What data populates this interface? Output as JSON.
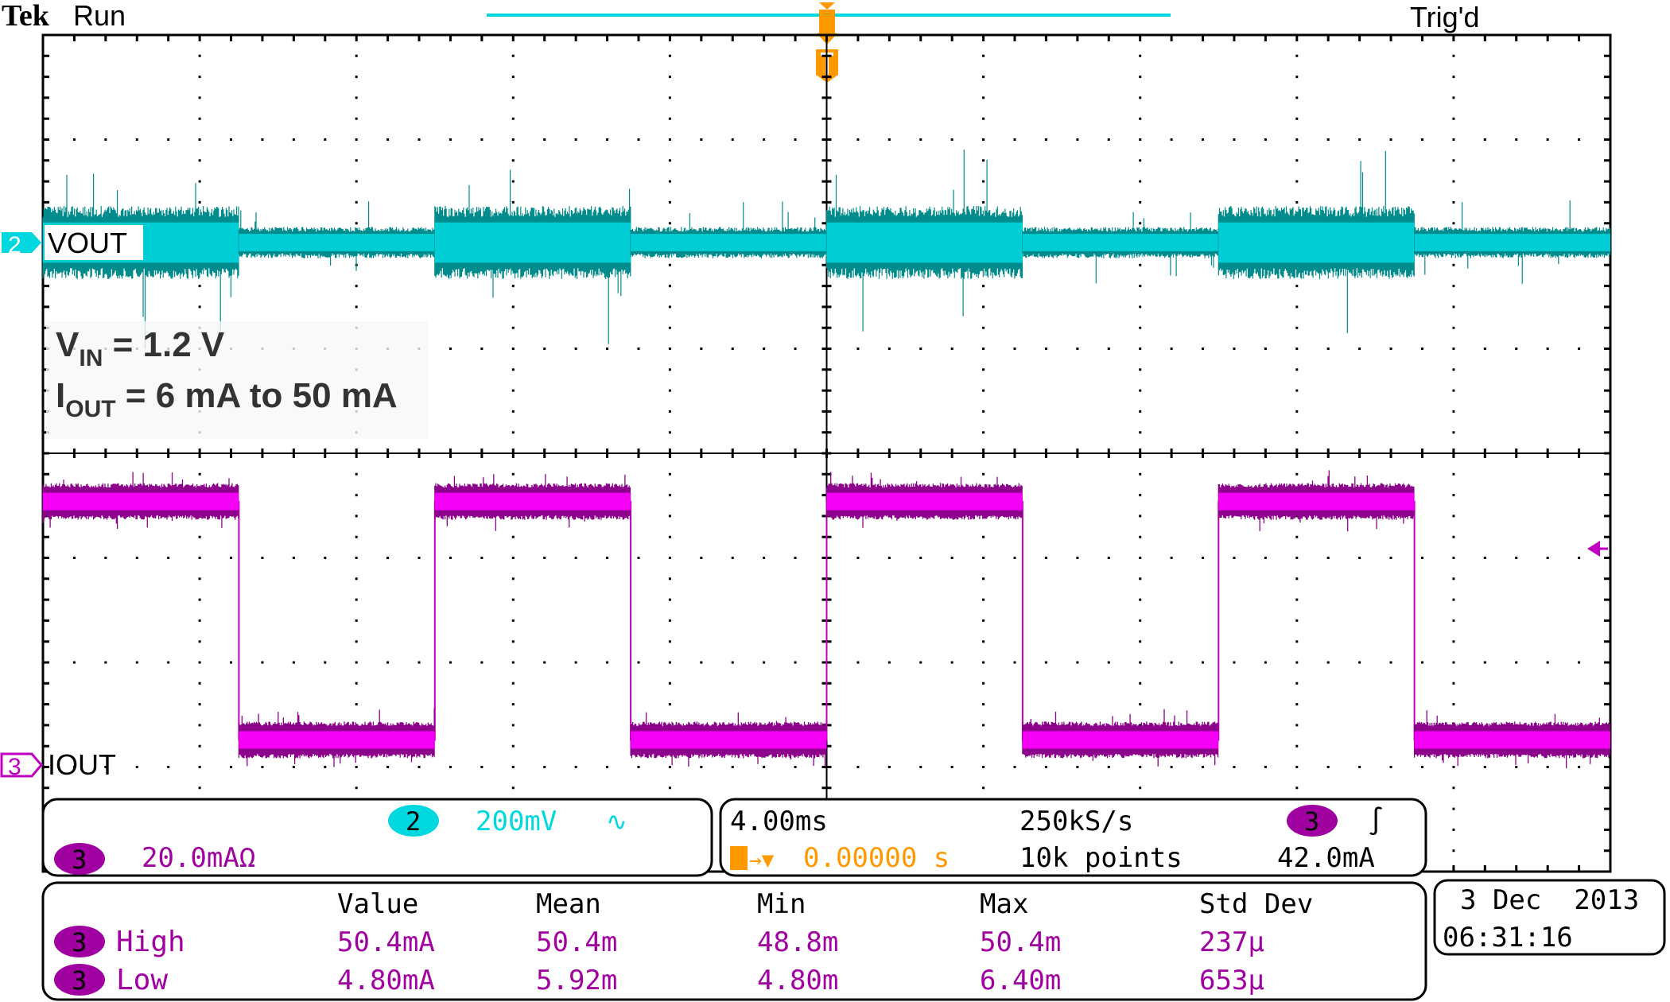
{
  "header": {
    "brand": "Tek",
    "run_state": "Run",
    "trigger_status": "Trig'd"
  },
  "annotation": {
    "line1_main": "V",
    "line1_sub": "IN",
    "line1_rest": " = 1.2 V",
    "line2_main": "I",
    "line2_sub": "OUT",
    "line2_rest": " = 6 mA to 50 mA"
  },
  "channels": [
    {
      "number": "2",
      "label": "VOUT",
      "scale": "200mV",
      "coupling_symbol": "∿",
      "color": "#00d8e0"
    },
    {
      "number": "3",
      "label": "IOUT",
      "scale": "20.0mAΩ",
      "color": "#a000a0"
    }
  ],
  "timebase": {
    "time_per_div": "4.00ms",
    "sample_rate": "250kS/s",
    "record_length": "10k points",
    "trigger_position": "0.00000 s",
    "trigger_channel": "3",
    "trigger_slope_symbol": "∫",
    "trigger_level": "42.0mA"
  },
  "measurements": {
    "headers": [
      "Value",
      "Mean",
      "Min",
      "Max",
      "Std Dev"
    ],
    "rows": [
      {
        "channel": "3",
        "name": "High",
        "values": [
          "50.4mA",
          "50.4m",
          "48.8m",
          "50.4m",
          "237µ"
        ]
      },
      {
        "channel": "3",
        "name": "Low",
        "values": [
          "4.80mA",
          "5.92m",
          "4.80m",
          "6.40m",
          "653µ"
        ]
      }
    ]
  },
  "datetime": {
    "date": "3 Dec  2013",
    "time": "06:31:16"
  },
  "colors": {
    "ch2": "#00d8e0",
    "ch2_dark": "#008c8c",
    "ch3": "#ff00ff",
    "ch3_dark": "#8c008c",
    "trigger": "#ff9900",
    "grid": "#000000"
  },
  "chart_data": {
    "type": "line",
    "x_unit": "ms",
    "xlim": [
      -20,
      20
    ],
    "x_divisions": 10,
    "y_divisions": 8,
    "grid": true,
    "trigger_time": 0,
    "series": [
      {
        "name": "VOUT",
        "channel": "2",
        "unit": "mV",
        "volts_per_div": 200,
        "coupling": "AC",
        "segments": [
          {
            "t": [
              -20,
              -15
            ],
            "load": "high",
            "noise_pp_mV": 140
          },
          {
            "t": [
              -15,
              -10
            ],
            "load": "low",
            "noise_pp_mV": 60
          },
          {
            "t": [
              -10,
              -5
            ],
            "load": "high",
            "noise_pp_mV": 140
          },
          {
            "t": [
              -5,
              0
            ],
            "load": "low",
            "noise_pp_mV": 60
          },
          {
            "t": [
              0,
              5
            ],
            "load": "high",
            "noise_pp_mV": 140
          },
          {
            "t": [
              5,
              10
            ],
            "load": "low",
            "noise_pp_mV": 60
          },
          {
            "t": [
              10,
              15
            ],
            "load": "high",
            "noise_pp_mV": 140
          },
          {
            "t": [
              15,
              20
            ],
            "load": "low",
            "noise_pp_mV": 60
          }
        ]
      },
      {
        "name": "IOUT",
        "channel": "3",
        "unit": "mA",
        "amps_per_div": 20,
        "x": [
          -20,
          -15,
          -15,
          -10,
          -10,
          -5,
          -5,
          0,
          0,
          5,
          5,
          10,
          10,
          15,
          15,
          20
        ],
        "y": [
          50.4,
          50.4,
          4.8,
          4.8,
          50.4,
          50.4,
          4.8,
          4.8,
          50.4,
          50.4,
          4.8,
          4.8,
          50.4,
          50.4,
          4.8,
          4.8
        ]
      }
    ]
  }
}
